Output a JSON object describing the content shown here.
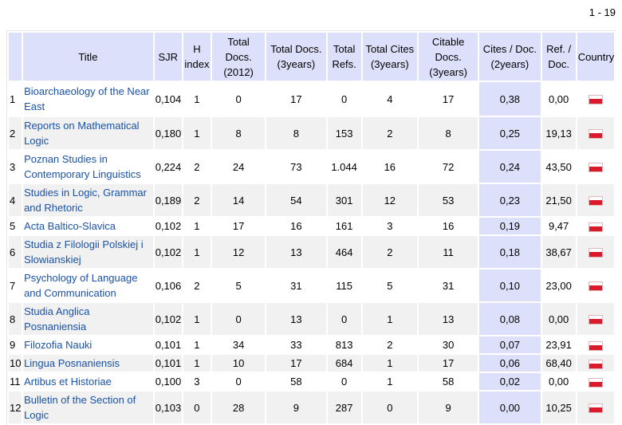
{
  "pager": "1 - 19",
  "columns": {
    "title": "Title",
    "sjr": "SJR",
    "h_index": "H index",
    "total_docs_year": "Total Docs. (2012)",
    "total_docs_3y": "Total Docs. (3years)",
    "total_refs": "Total Refs.",
    "total_cites_3y": "Total Cites (3years)",
    "citable_docs_3y": "Citable Docs. (3years)",
    "cites_per_doc": "Cites / Doc. (2years)",
    "refs_per_doc": "Ref. / Doc.",
    "country": "Country"
  },
  "country_flag": "flag-poland-icon",
  "rows": [
    {
      "rank": "1",
      "title": "Bioarchaeology of the Near East",
      "sjr": "0,104",
      "h": "1",
      "docs": "0",
      "docs3": "17",
      "refs": "0",
      "cites3": "4",
      "citable3": "17",
      "cpd": "0,38",
      "rpd": "0,00"
    },
    {
      "rank": "2",
      "title": "Reports on Mathematical Logic",
      "sjr": "0,180",
      "h": "1",
      "docs": "8",
      "docs3": "8",
      "refs": "153",
      "cites3": "2",
      "citable3": "8",
      "cpd": "0,25",
      "rpd": "19,13"
    },
    {
      "rank": "3",
      "title": "Poznan Studies in Contemporary Linguistics",
      "sjr": "0,224",
      "h": "2",
      "docs": "24",
      "docs3": "73",
      "refs": "1.044",
      "cites3": "16",
      "citable3": "72",
      "cpd": "0,24",
      "rpd": "43,50"
    },
    {
      "rank": "4",
      "title": "Studies in Logic, Grammar and Rhetoric",
      "sjr": "0,189",
      "h": "2",
      "docs": "14",
      "docs3": "54",
      "refs": "301",
      "cites3": "12",
      "citable3": "53",
      "cpd": "0,23",
      "rpd": "21,50"
    },
    {
      "rank": "5",
      "title": "Acta Baltico-Slavica",
      "sjr": "0,102",
      "h": "1",
      "docs": "17",
      "docs3": "16",
      "refs": "161",
      "cites3": "3",
      "citable3": "16",
      "cpd": "0,19",
      "rpd": "9,47"
    },
    {
      "rank": "6",
      "title": "Studia z Filologii Polskiej i Slowianskiej",
      "sjr": "0,102",
      "h": "1",
      "docs": "12",
      "docs3": "13",
      "refs": "464",
      "cites3": "2",
      "citable3": "11",
      "cpd": "0,18",
      "rpd": "38,67"
    },
    {
      "rank": "7",
      "title": "Psychology of Language and Communication",
      "sjr": "0,106",
      "h": "2",
      "docs": "5",
      "docs3": "31",
      "refs": "115",
      "cites3": "5",
      "citable3": "31",
      "cpd": "0,10",
      "rpd": "23,00"
    },
    {
      "rank": "8",
      "title": "Studia Anglica Posnaniensia",
      "sjr": "0,102",
      "h": "1",
      "docs": "0",
      "docs3": "13",
      "refs": "0",
      "cites3": "1",
      "citable3": "13",
      "cpd": "0,08",
      "rpd": "0,00"
    },
    {
      "rank": "9",
      "title": "Filozofia Nauki",
      "sjr": "0,101",
      "h": "1",
      "docs": "34",
      "docs3": "33",
      "refs": "813",
      "cites3": "2",
      "citable3": "30",
      "cpd": "0,07",
      "rpd": "23,91"
    },
    {
      "rank": "10",
      "title": "Lingua Posnaniensis",
      "sjr": "0,101",
      "h": "1",
      "docs": "10",
      "docs3": "17",
      "refs": "684",
      "cites3": "1",
      "citable3": "17",
      "cpd": "0,06",
      "rpd": "68,40"
    },
    {
      "rank": "11",
      "title": "Artibus et Historiae",
      "sjr": "0,100",
      "h": "3",
      "docs": "0",
      "docs3": "58",
      "refs": "0",
      "cites3": "1",
      "citable3": "58",
      "cpd": "0,02",
      "rpd": "0,00"
    },
    {
      "rank": "12",
      "title": "Bulletin of the Section of Logic",
      "sjr": "0,103",
      "h": "0",
      "docs": "28",
      "docs3": "9",
      "refs": "287",
      "cites3": "0",
      "citable3": "9",
      "cpd": "0,00",
      "rpd": "10,25"
    }
  ]
}
